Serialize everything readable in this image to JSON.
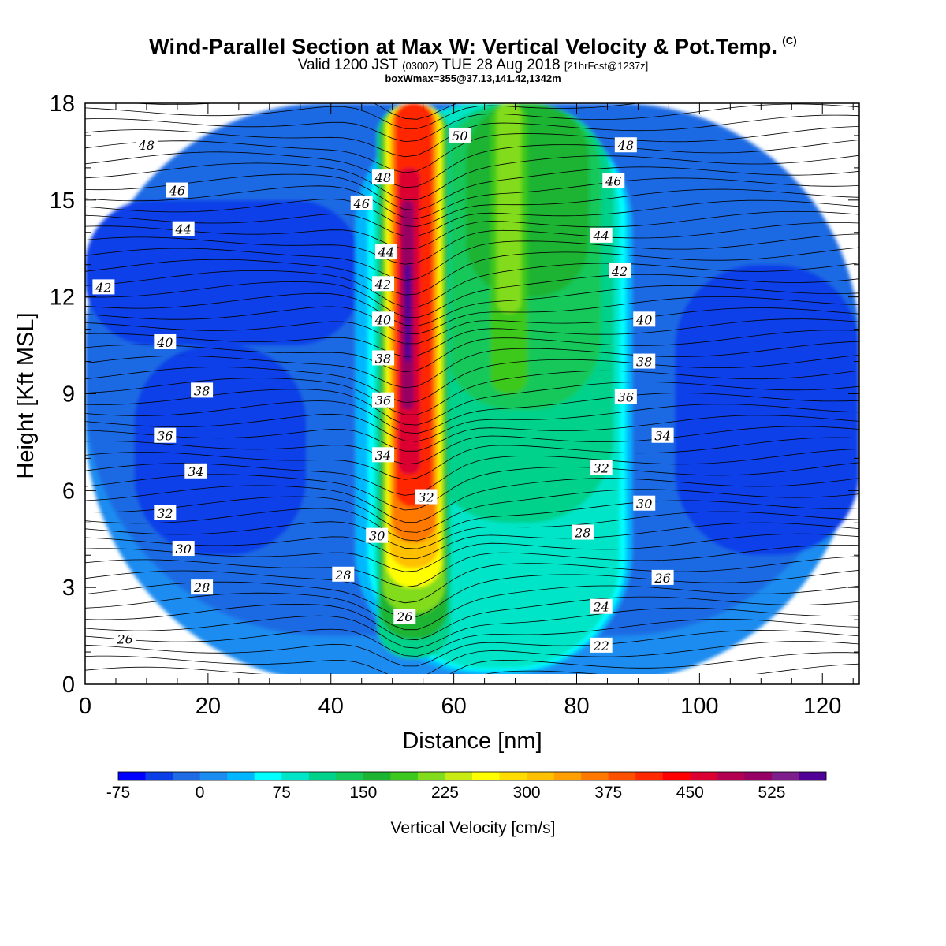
{
  "header": {
    "title": "Wind-Parallel Section at Max W: Vertical Velocity & Pot.Temp.",
    "title_mark": "(C)",
    "valid_prefix": "Valid 1200 JST",
    "valid_utc": "(0300Z)",
    "valid_date": "TUE 28 Aug 2018",
    "forecast_info": "[21hrFcst@1237z]",
    "box_info": "boxWmax=355@37.13,141.42,1342m"
  },
  "chart_data": {
    "type": "heatmap",
    "xlabel": "Distance [nm]",
    "ylabel": "Height [Kft MSL]",
    "xlim": [
      0,
      126
    ],
    "ylim": [
      0,
      18
    ],
    "x_ticks": [
      0,
      20,
      40,
      60,
      80,
      100,
      120
    ],
    "y_ticks": [
      0,
      3,
      6,
      9,
      12,
      15,
      18
    ],
    "colorbar": {
      "label": "Vertical Velocity [cm/s]",
      "min": -75,
      "step": 25,
      "tick_labels": [
        "-75",
        "0",
        "75",
        "150",
        "225",
        "300",
        "375",
        "450",
        "525"
      ],
      "colors": [
        "#0000ff",
        "#0a3fe8",
        "#1f6be3",
        "#1b8cf0",
        "#00b7ff",
        "#00ffff",
        "#00e5c8",
        "#00d28c",
        "#14c85a",
        "#1db432",
        "#3cc81e",
        "#82dc1e",
        "#c8eb14",
        "#ffff00",
        "#ffdc00",
        "#ffc000",
        "#ffa000",
        "#ff7800",
        "#ff5000",
        "#ff2800",
        "#ff0000",
        "#dc0032",
        "#b40050",
        "#960064",
        "#7d1e8c",
        "#500096"
      ]
    },
    "shading": [
      {
        "x": 0,
        "y": 0,
        "w": 126,
        "h": 18,
        "value": 0
      },
      {
        "x": 0,
        "y": 1.5,
        "w": 126,
        "h": 16.5,
        "value": -25
      },
      {
        "x": 8,
        "y": 4.0,
        "w": 28,
        "h": 6.5,
        "value": -50
      },
      {
        "x": 0,
        "y": 10.5,
        "w": 45,
        "h": 4.5,
        "value": -50
      },
      {
        "x": 96,
        "y": 4.0,
        "w": 30,
        "h": 9.0,
        "value": -50
      },
      {
        "x": 77,
        "y": 2.4,
        "w": 6,
        "h": 4.0,
        "value": -75
      },
      {
        "x": 47,
        "y": 11.0,
        "w": 2,
        "h": 1.8,
        "value": -75
      },
      {
        "x": 44,
        "y": 0.3,
        "w": 45,
        "h": 17.7,
        "value": 25
      },
      {
        "x": 46,
        "y": 0.4,
        "w": 42,
        "h": 17.6,
        "value": 50
      },
      {
        "x": 47,
        "y": 0.5,
        "w": 40,
        "h": 17.5,
        "value": 75
      },
      {
        "x": 55,
        "y": 5.0,
        "w": 31,
        "h": 13.0,
        "value": 100
      },
      {
        "x": 58,
        "y": 8.5,
        "w": 26,
        "h": 9.5,
        "value": 125
      },
      {
        "x": 62,
        "y": 12.0,
        "w": 20,
        "h": 6.0,
        "value": 150
      },
      {
        "x": 66,
        "y": 9.0,
        "w": 6,
        "h": 9.0,
        "value": 175
      },
      {
        "x": 67,
        "y": 11.5,
        "w": 4,
        "h": 6.5,
        "value": 200
      },
      {
        "x": 47.5,
        "y": 0.8,
        "w": 12,
        "h": 17.2,
        "value": 100
      },
      {
        "x": 48,
        "y": 1.4,
        "w": 11,
        "h": 16.6,
        "value": 150
      },
      {
        "x": 48.5,
        "y": 2.2,
        "w": 10,
        "h": 15.8,
        "value": 200
      },
      {
        "x": 49,
        "y": 3.0,
        "w": 9,
        "h": 15.0,
        "value": 250
      },
      {
        "x": 49.5,
        "y": 3.6,
        "w": 8,
        "h": 14.4,
        "value": 300
      },
      {
        "x": 50,
        "y": 4.4,
        "w": 7,
        "h": 13.6,
        "value": 350
      },
      {
        "x": 50.5,
        "y": 5.5,
        "w": 6,
        "h": 12.5,
        "value": 400
      },
      {
        "x": 51,
        "y": 6.5,
        "w": 3.5,
        "h": 9.5,
        "value": 450
      },
      {
        "x": 51.5,
        "y": 8.5,
        "w": 2,
        "h": 6.5,
        "value": 500
      },
      {
        "x": 52,
        "y": 10.0,
        "w": 1,
        "h": 3.0,
        "value": 550
      }
    ],
    "contour_labels": [
      {
        "text": "48",
        "x": 10,
        "y": 16.7
      },
      {
        "text": "46",
        "x": 15,
        "y": 15.3
      },
      {
        "text": "44",
        "x": 16,
        "y": 14.1
      },
      {
        "text": "42",
        "x": 3,
        "y": 12.3
      },
      {
        "text": "40",
        "x": 13,
        "y": 10.6
      },
      {
        "text": "38",
        "x": 19,
        "y": 9.1
      },
      {
        "text": "36",
        "x": 13,
        "y": 7.7
      },
      {
        "text": "34",
        "x": 18,
        "y": 6.6
      },
      {
        "text": "32",
        "x": 13,
        "y": 5.3
      },
      {
        "text": "30",
        "x": 16,
        "y": 4.2
      },
      {
        "text": "28",
        "x": 19,
        "y": 3.0
      },
      {
        "text": "26",
        "x": 6.5,
        "y": 1.4
      },
      {
        "text": "28",
        "x": 42,
        "y": 3.4
      },
      {
        "text": "30",
        "x": 47.5,
        "y": 4.6
      },
      {
        "text": "26",
        "x": 52,
        "y": 2.1
      },
      {
        "text": "32",
        "x": 55.5,
        "y": 5.8
      },
      {
        "text": "34",
        "x": 48.5,
        "y": 7.1
      },
      {
        "text": "36",
        "x": 48.5,
        "y": 8.8
      },
      {
        "text": "38",
        "x": 48.5,
        "y": 10.1
      },
      {
        "text": "40",
        "x": 48.5,
        "y": 11.3
      },
      {
        "text": "42",
        "x": 48.5,
        "y": 12.4
      },
      {
        "text": "44",
        "x": 49,
        "y": 13.4
      },
      {
        "text": "46",
        "x": 45,
        "y": 14.9
      },
      {
        "text": "48",
        "x": 48.5,
        "y": 15.7
      },
      {
        "text": "50",
        "x": 61,
        "y": 17.0
      },
      {
        "text": "48",
        "x": 88,
        "y": 16.7
      },
      {
        "text": "46",
        "x": 86,
        "y": 15.6
      },
      {
        "text": "44",
        "x": 84,
        "y": 13.9
      },
      {
        "text": "42",
        "x": 87,
        "y": 12.8
      },
      {
        "text": "40",
        "x": 91,
        "y": 11.3
      },
      {
        "text": "38",
        "x": 91,
        "y": 10.0
      },
      {
        "text": "36",
        "x": 88,
        "y": 8.9
      },
      {
        "text": "34",
        "x": 94,
        "y": 7.7
      },
      {
        "text": "32",
        "x": 84,
        "y": 6.7
      },
      {
        "text": "30",
        "x": 91,
        "y": 5.6
      },
      {
        "text": "28",
        "x": 81,
        "y": 4.7
      },
      {
        "text": "26",
        "x": 94,
        "y": 3.3
      },
      {
        "text": "24",
        "x": 84,
        "y": 2.4
      },
      {
        "text": "22",
        "x": 84,
        "y": 1.2
      }
    ]
  }
}
